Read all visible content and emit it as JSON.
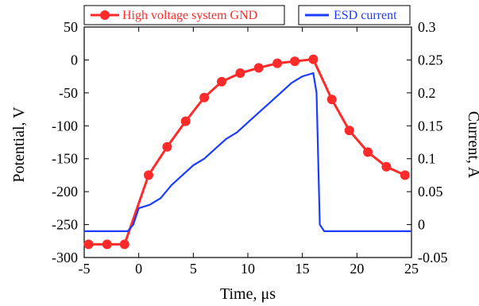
{
  "chart_data": {
    "type": "line",
    "xlabel": "Time,  μs",
    "ylabel_left": "Potential,  V",
    "ylabel_right": "Current,  A",
    "xlim": [
      -5,
      25
    ],
    "ylim_left": [
      -300,
      50
    ],
    "ylim_right": [
      -0.05,
      0.3
    ],
    "x_ticks": [
      "-5",
      "0",
      "5",
      "10",
      "15",
      "20",
      "25"
    ],
    "y_left_ticks": [
      "50",
      "0",
      "-50",
      "-100",
      "-150",
      "-200",
      "-250",
      "-300"
    ],
    "y_right_ticks": [
      "0.3",
      "0.25",
      "0.2",
      "0.15",
      "0.1",
      "0.05",
      "0",
      "-0.05"
    ],
    "grid": false,
    "colors": {
      "potential": "#ff2a2a",
      "current": "#1c3cff",
      "axes": "#000000"
    },
    "series": [
      {
        "name": "High voltage system GND",
        "axis": "left",
        "marker": "circle",
        "x": [
          -4.6,
          -2.9,
          -1.3,
          0.9,
          2.6,
          4.3,
          6.0,
          7.6,
          9.3,
          11.0,
          12.7,
          14.3,
          16.0,
          17.7,
          19.3,
          21.0,
          22.7,
          24.4
        ],
        "y": [
          -280,
          -280,
          -280,
          -175,
          -132,
          -93,
          -57,
          -33,
          -20,
          -12,
          -5,
          -2,
          1,
          -60,
          -107,
          -140,
          -162,
          -175
        ]
      },
      {
        "name": "ESD current",
        "axis": "right",
        "marker": "none",
        "x": [
          -5,
          -3,
          -1,
          -0.5,
          0,
          1,
          2,
          3,
          4,
          5,
          6,
          7,
          8,
          9,
          10,
          11,
          12,
          13,
          14,
          15,
          16,
          16.3,
          16.6,
          17,
          18,
          20,
          22,
          24,
          25
        ],
        "y": [
          -0.01,
          -0.01,
          -0.01,
          0.0,
          0.025,
          0.03,
          0.04,
          0.06,
          0.075,
          0.09,
          0.1,
          0.115,
          0.13,
          0.14,
          0.155,
          0.17,
          0.185,
          0.2,
          0.215,
          0.225,
          0.23,
          0.2,
          0.0,
          -0.01,
          -0.01,
          -0.01,
          -0.01,
          -0.01,
          -0.01
        ]
      }
    ],
    "legend": {
      "left": "High voltage system GND",
      "right": "ESD current"
    }
  }
}
